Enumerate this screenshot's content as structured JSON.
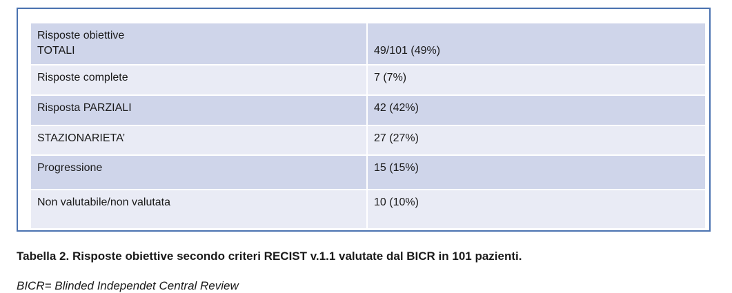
{
  "table": {
    "rows": [
      {
        "label_line1": "Risposte obiettive",
        "label_line2": "TOTALI",
        "value": "49/101 (49%)"
      },
      {
        "label": "Risposte complete",
        "value": "7 (7%)"
      },
      {
        "label": "Risposta PARZIALI",
        "value": "42 (42%)"
      },
      {
        "label": "STAZIONARIETA’",
        "value": "27 (27%)"
      },
      {
        "label": "Progressione",
        "value": "15 (15%)"
      },
      {
        "label": "Non valutabile/non valutata",
        "value": "10 (10%)"
      }
    ]
  },
  "caption": "Tabella 2. Risposte obiettive secondo criteri RECIST v.1.1 valutate dal BICR in 101 pazienti.",
  "note": "BICR= Blinded Independet Central Review",
  "colors": {
    "border": "#4a72b0",
    "row_dark": "#cfd5ea",
    "row_light": "#e9ebf5"
  }
}
